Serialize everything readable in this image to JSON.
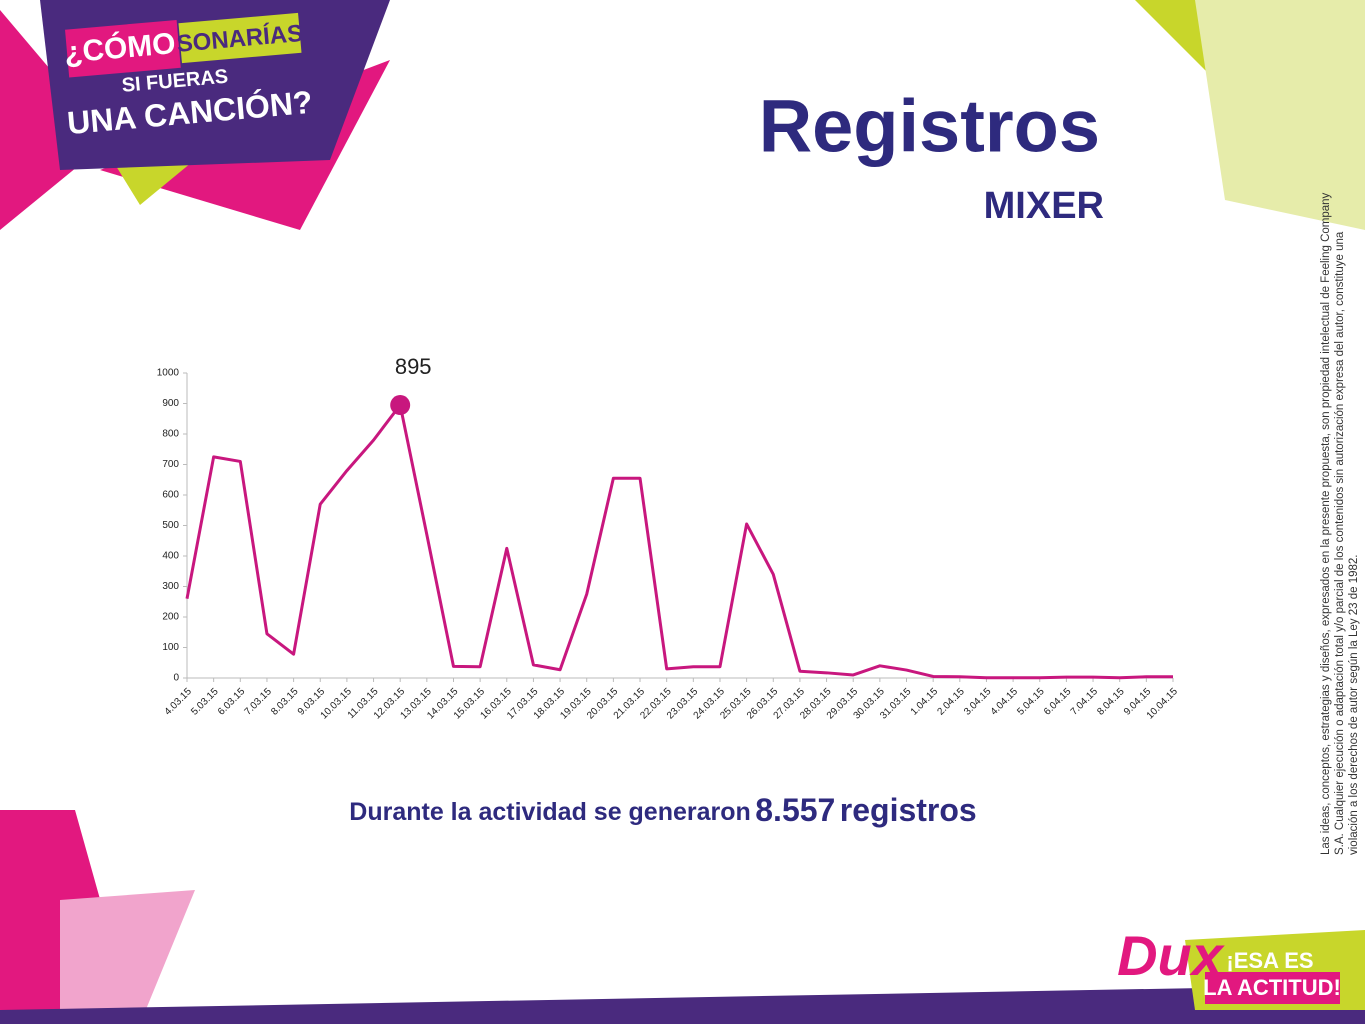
{
  "header": {
    "logo": {
      "line1a": "¿CÓMO",
      "line1b": "SONARÍAS",
      "line2": "SI FUERAS",
      "line3": "UNA CANCIÓN?"
    },
    "title": "Registros",
    "subtitle": "MIXER"
  },
  "chart_data": {
    "type": "line",
    "categories": [
      "4.03.15",
      "5.03.15",
      "6.03.15",
      "7.03.15",
      "8.03.15",
      "9.03.15",
      "10.03.15",
      "11.03.15",
      "12.03.15",
      "13.03.15",
      "14.03.15",
      "15.03.15",
      "16.03.15",
      "17.03.15",
      "18.03.15",
      "19.03.15",
      "20.03.15",
      "21.03.15",
      "22.03.15",
      "23.03.15",
      "24.03.15",
      "25.03.15",
      "26.03.15",
      "27.03.15",
      "28.03.15",
      "29.03.15",
      "30.03.15",
      "31.03.15",
      "1.04.15",
      "2.04.15",
      "3.04.15",
      "4.04.15",
      "5.04.15",
      "6.04.15",
      "7.04.15",
      "8.04.15",
      "9.04.15",
      "10.04.15"
    ],
    "values": [
      260,
      725,
      710,
      145,
      78,
      570,
      680,
      780,
      895,
      470,
      38,
      37,
      425,
      43,
      27,
      275,
      655,
      655,
      30,
      37,
      37,
      505,
      340,
      22,
      17,
      10,
      40,
      26,
      5,
      4,
      1,
      1,
      1,
      3,
      3,
      1,
      4,
      4
    ],
    "color": "#c8177e",
    "ylim": [
      0,
      1000
    ],
    "yticks": [
      0,
      100,
      200,
      300,
      400,
      500,
      600,
      700,
      800,
      900,
      1000
    ],
    "highlight": {
      "category": "12.03.15",
      "label": "895"
    }
  },
  "summary": {
    "prefix": "Durante la actividad se generaron",
    "count": "8.557",
    "suffix": "registros"
  },
  "legal": [
    "Las ideas, conceptos, estrategias y diseños, expresados en la presente propuesta, son propiedad intelectual de Feeling Company",
    "S.A. Cualquier ejecución o adaptación total y/o parcial de los contenidos sin autorización expresa del autor, constituye una",
    "violación a los derechos de autor según la Ley 23 de 1982."
  ],
  "brand": {
    "name": "Dux",
    "slogan1": "¡ESA ES",
    "slogan2": "LA ACTITUD!"
  }
}
